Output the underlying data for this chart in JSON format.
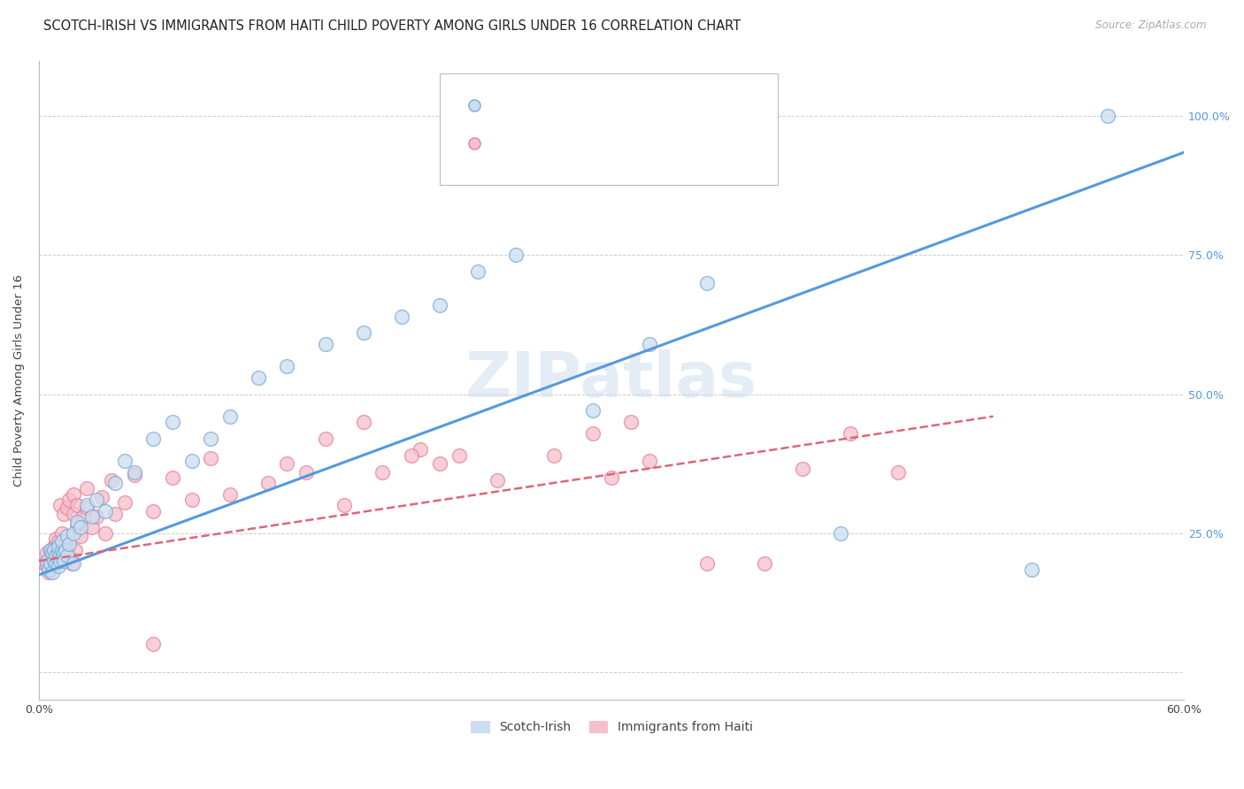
{
  "title": "SCOTCH-IRISH VS IMMIGRANTS FROM HAITI CHILD POVERTY AMONG GIRLS UNDER 16 CORRELATION CHART",
  "source": "Source: ZipAtlas.com",
  "ylabel": "Child Poverty Among Girls Under 16",
  "xlim": [
    0.0,
    0.6
  ],
  "ylim": [
    -0.05,
    1.1
  ],
  "legend_label_scotch": "Scotch-Irish",
  "legend_label_haiti": "Immigrants from Haiti",
  "blue_fill": "#ccddf0",
  "blue_edge": "#7aaad8",
  "pink_fill": "#f5c0cc",
  "pink_edge": "#e88099",
  "blue_line": "#5599dd",
  "pink_line": "#dd6677",
  "watermark": "ZIPatlas",
  "background_color": "#ffffff",
  "grid_color": "#cccccc",
  "scotch_irish_x": [
    0.004,
    0.005,
    0.006,
    0.006,
    0.007,
    0.007,
    0.008,
    0.008,
    0.009,
    0.009,
    0.01,
    0.01,
    0.01,
    0.011,
    0.011,
    0.012,
    0.012,
    0.013,
    0.013,
    0.014,
    0.015,
    0.015,
    0.016,
    0.018,
    0.018,
    0.02,
    0.022,
    0.025,
    0.028,
    0.03,
    0.035,
    0.04,
    0.045,
    0.05,
    0.06,
    0.07,
    0.08,
    0.09,
    0.1,
    0.115,
    0.13,
    0.15,
    0.17,
    0.19,
    0.21,
    0.23,
    0.25,
    0.29,
    0.32,
    0.35,
    0.42,
    0.52,
    0.56
  ],
  "scotch_irish_y": [
    0.2,
    0.185,
    0.22,
    0.195,
    0.215,
    0.18,
    0.2,
    0.22,
    0.195,
    0.21,
    0.19,
    0.215,
    0.225,
    0.21,
    0.2,
    0.22,
    0.235,
    0.215,
    0.2,
    0.22,
    0.245,
    0.21,
    0.23,
    0.25,
    0.195,
    0.27,
    0.26,
    0.3,
    0.28,
    0.31,
    0.29,
    0.34,
    0.38,
    0.36,
    0.42,
    0.45,
    0.38,
    0.42,
    0.46,
    0.53,
    0.55,
    0.59,
    0.61,
    0.64,
    0.66,
    0.72,
    0.75,
    0.47,
    0.59,
    0.7,
    0.25,
    0.185,
    1.0
  ],
  "haiti_x": [
    0.003,
    0.004,
    0.004,
    0.005,
    0.005,
    0.006,
    0.006,
    0.007,
    0.007,
    0.008,
    0.008,
    0.009,
    0.009,
    0.01,
    0.01,
    0.01,
    0.011,
    0.011,
    0.012,
    0.012,
    0.013,
    0.013,
    0.014,
    0.015,
    0.015,
    0.016,
    0.016,
    0.017,
    0.018,
    0.018,
    0.019,
    0.02,
    0.02,
    0.022,
    0.023,
    0.025,
    0.025,
    0.028,
    0.03,
    0.033,
    0.035,
    0.038,
    0.04,
    0.045,
    0.05,
    0.06,
    0.07,
    0.08,
    0.09,
    0.1,
    0.12,
    0.14,
    0.16,
    0.18,
    0.2,
    0.22,
    0.24,
    0.27,
    0.3,
    0.32,
    0.35,
    0.38,
    0.4,
    0.425,
    0.45,
    0.29,
    0.31,
    0.13,
    0.15,
    0.17,
    0.195,
    0.21,
    0.06
  ],
  "haiti_y": [
    0.195,
    0.215,
    0.19,
    0.2,
    0.18,
    0.22,
    0.2,
    0.215,
    0.195,
    0.21,
    0.225,
    0.195,
    0.24,
    0.2,
    0.215,
    0.235,
    0.2,
    0.3,
    0.215,
    0.25,
    0.285,
    0.2,
    0.215,
    0.225,
    0.295,
    0.21,
    0.31,
    0.195,
    0.285,
    0.32,
    0.22,
    0.265,
    0.3,
    0.245,
    0.28,
    0.33,
    0.295,
    0.26,
    0.28,
    0.315,
    0.25,
    0.345,
    0.285,
    0.305,
    0.355,
    0.29,
    0.35,
    0.31,
    0.385,
    0.32,
    0.34,
    0.36,
    0.3,
    0.36,
    0.4,
    0.39,
    0.345,
    0.39,
    0.35,
    0.38,
    0.195,
    0.195,
    0.365,
    0.43,
    0.36,
    0.43,
    0.45,
    0.375,
    0.42,
    0.45,
    0.39,
    0.375,
    0.05
  ],
  "scotch_trendline_x": [
    0.0,
    0.6
  ],
  "scotch_trendline_y": [
    0.175,
    0.935
  ],
  "haiti_trendline_x": [
    0.0,
    0.5
  ],
  "haiti_trendline_y": [
    0.2,
    0.46
  ]
}
